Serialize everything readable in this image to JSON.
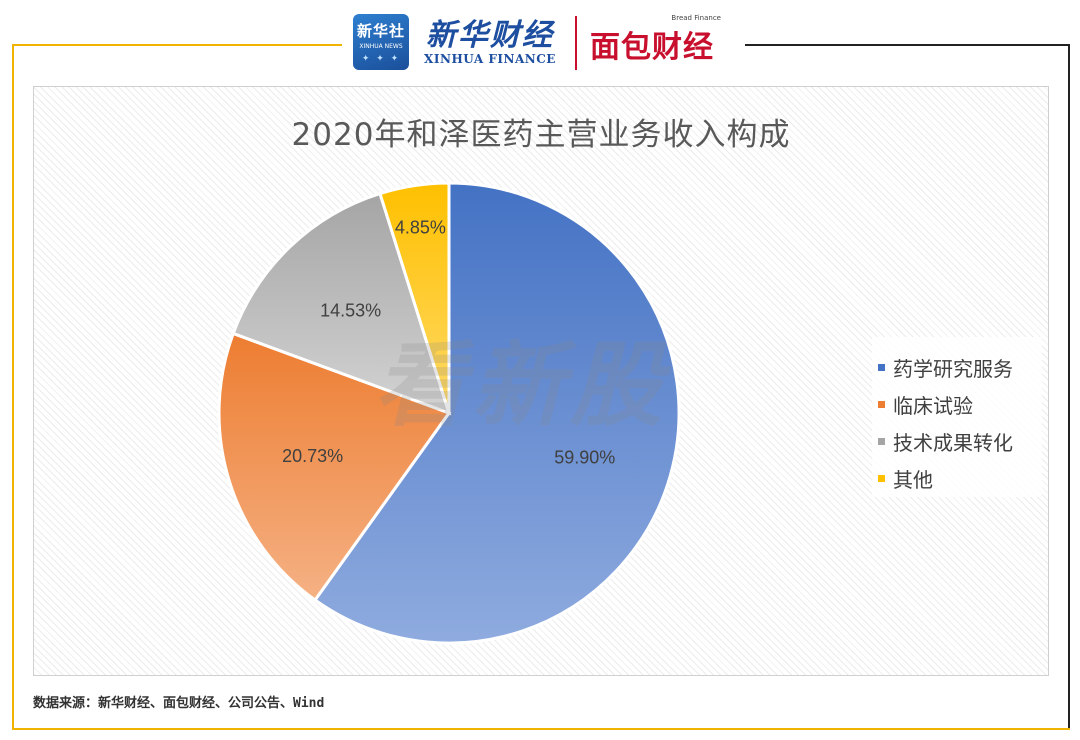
{
  "header": {
    "xhs_logo": {
      "cn": "新华社",
      "en": "XINHUA NEWS"
    },
    "brand_left": {
      "cn": "新华财经",
      "en": "XINHUA FINANCE"
    },
    "brand_right": {
      "tag": "Bread Finance",
      "cn": "面包财经"
    }
  },
  "watermark": "看新股",
  "chart_data": {
    "type": "pie",
    "title": "2020年和泽医药主营业务收入构成",
    "categories": [
      "药学研究服务",
      "临床试验",
      "技术成果转化",
      "其他"
    ],
    "values": [
      59.9,
      20.73,
      14.53,
      4.85
    ],
    "data_labels": [
      "59.90%",
      "20.73%",
      "14.53%",
      "4.85%"
    ],
    "colors": [
      "#4472c4",
      "#ed7d31",
      "#a5a5a5",
      "#ffc000"
    ],
    "colors_light": [
      "#8fabdf",
      "#f5b184",
      "#d3d3d3",
      "#ffd966"
    ],
    "legend_position": "right",
    "start_angle": "12 o'clock, clockwise"
  },
  "source": "数据来源：新华财经、面包财经、公司公告、Wind"
}
